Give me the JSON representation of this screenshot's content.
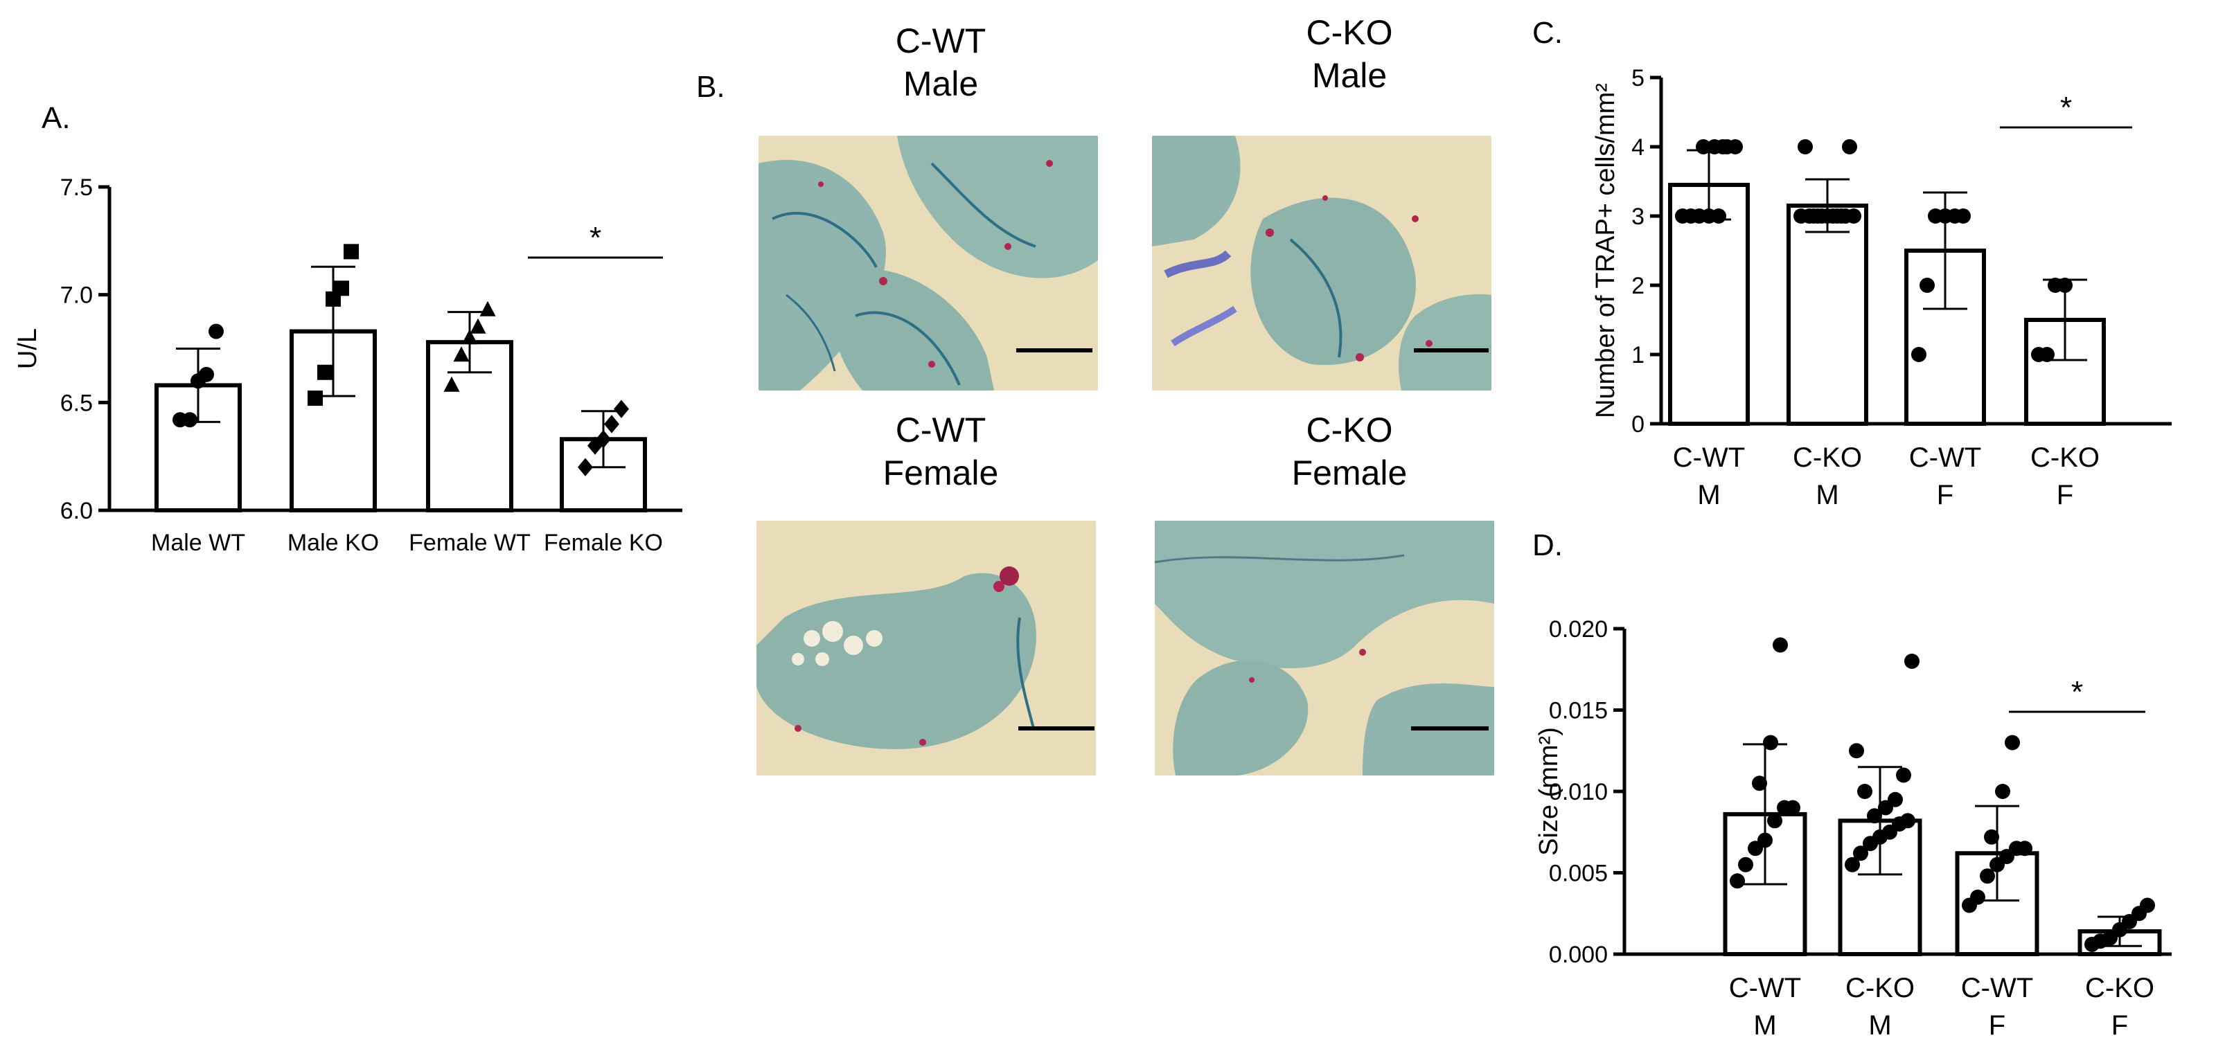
{
  "panel_labels": {
    "a": "A.",
    "b": "B.",
    "c": "C.",
    "d": "D."
  },
  "micrographs": [
    {
      "line1": "C-WT",
      "line2": "Male"
    },
    {
      "line1": "C-KO",
      "line2": "Male"
    },
    {
      "line1": "C-WT",
      "line2": "Female"
    },
    {
      "line1": "C-KO",
      "line2": "Female"
    }
  ],
  "colors": {
    "stain_background": "#e9dcb9",
    "marrow": "#8fb5ae",
    "trap_stain": "#b0264f",
    "bars": "#ffffff",
    "ink": "#000000"
  },
  "chart_data": [
    {
      "type": "bar",
      "panel": "A.",
      "categories": [
        "Male WT",
        "Male KO",
        "Female WT",
        "Female KO"
      ],
      "ylabel": "U/L",
      "ylim": [
        6.0,
        7.5
      ],
      "yticks": [
        "6.0",
        "6.5",
        "7.0",
        "7.5"
      ],
      "values": [
        6.58,
        6.83,
        6.78,
        6.33
      ],
      "error": [
        0.17,
        0.3,
        0.14,
        0.13
      ],
      "markers": [
        "circle",
        "square",
        "triangle",
        "diamond"
      ],
      "points": [
        [
          6.42,
          6.42,
          6.6,
          6.63,
          6.83
        ],
        [
          6.52,
          6.64,
          6.98,
          7.03,
          7.2
        ],
        [
          6.58,
          6.72,
          6.8,
          6.85,
          6.93
        ],
        [
          6.2,
          6.3,
          6.33,
          6.4,
          6.47
        ]
      ],
      "significance": {
        "label": "*",
        "between": [
          2,
          3
        ]
      }
    },
    {
      "type": "bar",
      "panel": "C.",
      "categories": [
        [
          "C-WT",
          "M"
        ],
        [
          "C-KO",
          "M"
        ],
        [
          "C-WT",
          "F"
        ],
        [
          "C-KO",
          "F"
        ]
      ],
      "ylabel": "Number of TRAP+ cells/mm²",
      "ylim": [
        0,
        5
      ],
      "yticks": [
        "0",
        "1",
        "2",
        "3",
        "4",
        "5"
      ],
      "values": [
        3.45,
        3.15,
        2.5,
        1.5
      ],
      "error": [
        0.5,
        0.38,
        0.84,
        0.58
      ],
      "points": [
        [
          3.0,
          3.0,
          3.0,
          3.0,
          3.0,
          4.0,
          4.0,
          4.0,
          4.0,
          4.0
        ],
        [
          3.0,
          3.0,
          3.0,
          3.0,
          3.0,
          3.0,
          3.0,
          3.0,
          3.0,
          3.0,
          3.0,
          4.0,
          4.0
        ],
        [
          1.0,
          2.0,
          3.0,
          3.0,
          3.0,
          3.0
        ],
        [
          1.0,
          1.0,
          2.0,
          2.0
        ]
      ],
      "significance": {
        "label": "*",
        "between": [
          2,
          3
        ]
      }
    },
    {
      "type": "bar",
      "panel": "D.",
      "categories": [
        [
          "C-WT",
          "M"
        ],
        [
          "C-KO",
          "M"
        ],
        [
          "C-WT",
          "F"
        ],
        [
          "C-KO",
          "F"
        ]
      ],
      "ylabel": "Size (mm²)",
      "ylim": [
        0.0,
        0.02
      ],
      "yticks": [
        "0.000",
        "0.005",
        "0.010",
        "0.015",
        "0.020"
      ],
      "values": [
        0.0086,
        0.0082,
        0.0062,
        0.0014
      ],
      "error": [
        0.0043,
        0.0033,
        0.0029,
        0.0009
      ],
      "points": [
        [
          0.0045,
          0.0055,
          0.0065,
          0.007,
          0.0082,
          0.009,
          0.009,
          0.0105,
          0.013,
          0.019
        ],
        [
          0.0055,
          0.0062,
          0.0068,
          0.0072,
          0.0075,
          0.008,
          0.0082,
          0.0085,
          0.009,
          0.0095,
          0.01,
          0.011,
          0.0125,
          0.018
        ],
        [
          0.003,
          0.0035,
          0.0048,
          0.0055,
          0.006,
          0.0065,
          0.0065,
          0.0072,
          0.01,
          0.013
        ],
        [
          0.0006,
          0.0008,
          0.001,
          0.0015,
          0.002,
          0.0025,
          0.003
        ]
      ],
      "significance": {
        "label": "*",
        "between": [
          2,
          3
        ]
      }
    }
  ]
}
